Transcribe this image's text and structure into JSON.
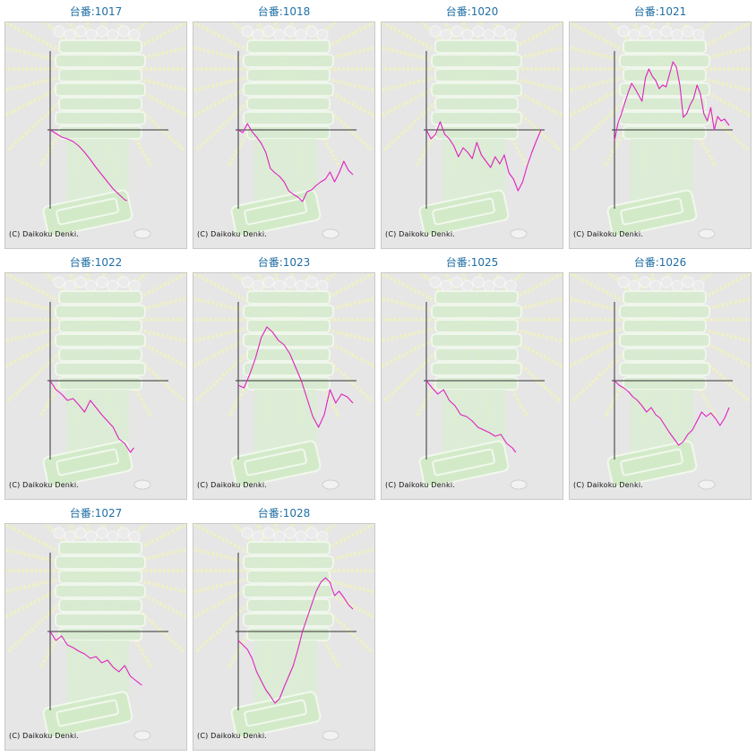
{
  "colors": {
    "title": "#1f6fa5",
    "line": "#e020c0",
    "axis": "#333333",
    "background": "#e6e6e6"
  },
  "copyright": "(C) Daikoku Denki.",
  "chart_data": [
    {
      "type": "line",
      "title": "台番:1017",
      "x": [
        0,
        5,
        10,
        15,
        20,
        25,
        30,
        35,
        40,
        45,
        50,
        55,
        60,
        65,
        67
      ],
      "series": [
        {
          "values": [
            0,
            -4,
            -8,
            -10,
            -13,
            -18,
            -25,
            -33,
            -42,
            -50,
            -58,
            -66,
            -72,
            -78,
            -79
          ]
        }
      ]
    },
    {
      "type": "line",
      "title": "台番:1018",
      "x": [
        0,
        4,
        8,
        12,
        16,
        20,
        24,
        28,
        32,
        36,
        40,
        44,
        48,
        52,
        56,
        60,
        64,
        68,
        72,
        76,
        80,
        84,
        88,
        92,
        96,
        100
      ],
      "series": [
        {
          "values": [
            0,
            -3,
            7,
            -2,
            -8,
            -15,
            -25,
            -43,
            -48,
            -52,
            -58,
            -68,
            -72,
            -75,
            -80,
            -69,
            -67,
            -62,
            -58,
            -55,
            -47,
            -58,
            -48,
            -35,
            -45,
            -50
          ]
        }
      ]
    },
    {
      "type": "line",
      "title": "台番:1020",
      "x": [
        0,
        4,
        8,
        12,
        16,
        20,
        24,
        28,
        32,
        36,
        40,
        44,
        48,
        52,
        56,
        60,
        64,
        68,
        72,
        76,
        80,
        84,
        88,
        92,
        96,
        100
      ],
      "series": [
        {
          "values": [
            0,
            -10,
            -5,
            9,
            -5,
            -10,
            -18,
            -30,
            -20,
            -25,
            -32,
            -14,
            -28,
            -35,
            -42,
            -30,
            -38,
            -28,
            -48,
            -55,
            -68,
            -58,
            -40,
            -25,
            -12,
            0
          ]
        }
      ]
    },
    {
      "type": "line",
      "title": "台番:1021",
      "x": [
        0,
        3,
        6,
        9,
        12,
        15,
        18,
        21,
        24,
        27,
        30,
        33,
        36,
        39,
        42,
        45,
        48,
        51,
        54,
        57,
        60,
        63,
        66,
        69,
        72,
        75,
        78,
        81,
        84,
        87,
        90,
        93,
        96,
        100
      ],
      "series": [
        {
          "values": [
            -12,
            7,
            18,
            30,
            42,
            52,
            46,
            39,
            32,
            58,
            68,
            60,
            55,
            46,
            50,
            48,
            62,
            76,
            70,
            50,
            14,
            18,
            28,
            35,
            50,
            40,
            18,
            10,
            25,
            0,
            15,
            10,
            12,
            5
          ]
        }
      ]
    },
    {
      "type": "line",
      "title": "台番:1022",
      "x": [
        0,
        5,
        10,
        15,
        20,
        25,
        30,
        35,
        40,
        45,
        50,
        55,
        60,
        65,
        70,
        73
      ],
      "series": [
        {
          "values": [
            0,
            -10,
            -15,
            -22,
            -20,
            -27,
            -35,
            -22,
            -30,
            -38,
            -45,
            -52,
            -65,
            -70,
            -80,
            -75
          ]
        }
      ]
    },
    {
      "type": "line",
      "title": "台番:1023",
      "x": [
        0,
        5,
        10,
        15,
        20,
        25,
        30,
        35,
        40,
        45,
        50,
        55,
        60,
        65,
        70,
        75,
        80,
        85,
        90,
        95,
        100
      ],
      "series": [
        {
          "values": [
            -5,
            -8,
            7,
            25,
            48,
            60,
            54,
            45,
            40,
            30,
            15,
            0,
            -20,
            -40,
            -52,
            -38,
            -10,
            -25,
            -15,
            -18,
            -25
          ]
        }
      ]
    },
    {
      "type": "line",
      "title": "台番:1025",
      "x": [
        0,
        5,
        10,
        15,
        20,
        25,
        30,
        35,
        40,
        45,
        50,
        55,
        60,
        65,
        70,
        75,
        78
      ],
      "series": [
        {
          "values": [
            0,
            -8,
            -15,
            -10,
            -22,
            -28,
            -38,
            -40,
            -45,
            -52,
            -55,
            -58,
            -62,
            -60,
            -70,
            -75,
            -80
          ]
        }
      ]
    },
    {
      "type": "line",
      "title": "台番:1026",
      "x": [
        0,
        4,
        8,
        12,
        16,
        20,
        24,
        28,
        32,
        36,
        40,
        44,
        48,
        52,
        56,
        60,
        64,
        68,
        72,
        76,
        80,
        84,
        88,
        92,
        96,
        100
      ],
      "series": [
        {
          "values": [
            0,
            -5,
            -8,
            -12,
            -18,
            -22,
            -28,
            -35,
            -30,
            -38,
            -42,
            -50,
            -58,
            -65,
            -72,
            -68,
            -60,
            -55,
            -45,
            -35,
            -40,
            -36,
            -42,
            -50,
            -42,
            -30
          ]
        }
      ]
    },
    {
      "type": "line",
      "title": "台番:1027",
      "x": [
        0,
        5,
        10,
        15,
        20,
        25,
        30,
        35,
        40,
        45,
        50,
        55,
        60,
        65,
        70,
        75,
        80
      ],
      "series": [
        {
          "values": [
            0,
            -10,
            -5,
            -15,
            -18,
            -22,
            -25,
            -30,
            -28,
            -35,
            -32,
            -40,
            -45,
            -38,
            -50,
            -55,
            -60
          ]
        }
      ]
    },
    {
      "type": "line",
      "title": "台番:1028",
      "x": [
        0,
        4,
        8,
        12,
        16,
        20,
        24,
        28,
        32,
        36,
        40,
        44,
        48,
        52,
        56,
        60,
        64,
        68,
        72,
        76,
        80,
        84,
        88,
        92,
        96,
        100
      ],
      "series": [
        {
          "values": [
            -10,
            -15,
            -20,
            -30,
            -45,
            -55,
            -65,
            -72,
            -80,
            -75,
            -62,
            -50,
            -38,
            -20,
            0,
            15,
            30,
            45,
            55,
            60,
            55,
            40,
            45,
            38,
            30,
            25
          ]
        }
      ]
    }
  ]
}
